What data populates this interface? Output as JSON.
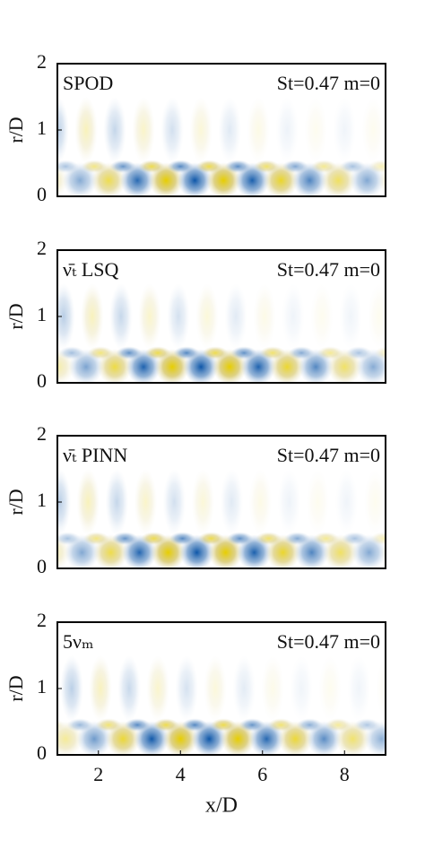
{
  "chart_data": [
    {
      "type": "heatmap",
      "title": "SPOD",
      "subtitle": "St=0.47 m=0",
      "ylabel": "r/D",
      "xlim": [
        1,
        9
      ],
      "ylim": [
        0,
        2
      ],
      "yticks": [
        0,
        1,
        2
      ]
    },
    {
      "type": "heatmap",
      "title": "ν̄ₜ LSQ",
      "subtitle": "St=0.47 m=0",
      "ylabel": "r/D",
      "xlim": [
        1,
        9
      ],
      "ylim": [
        0,
        2
      ],
      "yticks": [
        0,
        1,
        2
      ]
    },
    {
      "type": "heatmap",
      "title": "ν̄ₜ PINN",
      "subtitle": "St=0.47 m=0",
      "ylabel": "r/D",
      "xlim": [
        1,
        9
      ],
      "ylim": [
        0,
        2
      ],
      "yticks": [
        0,
        1,
        2
      ]
    },
    {
      "type": "heatmap",
      "title": "5νₘ",
      "subtitle": "St=0.47 m=0",
      "ylabel": "r/D",
      "xlabel": "x/D",
      "xlim": [
        1,
        9
      ],
      "ylim": [
        0,
        2
      ],
      "yticks": [
        0,
        1,
        2
      ],
      "xticks": [
        2,
        4,
        6,
        8
      ]
    }
  ]
}
